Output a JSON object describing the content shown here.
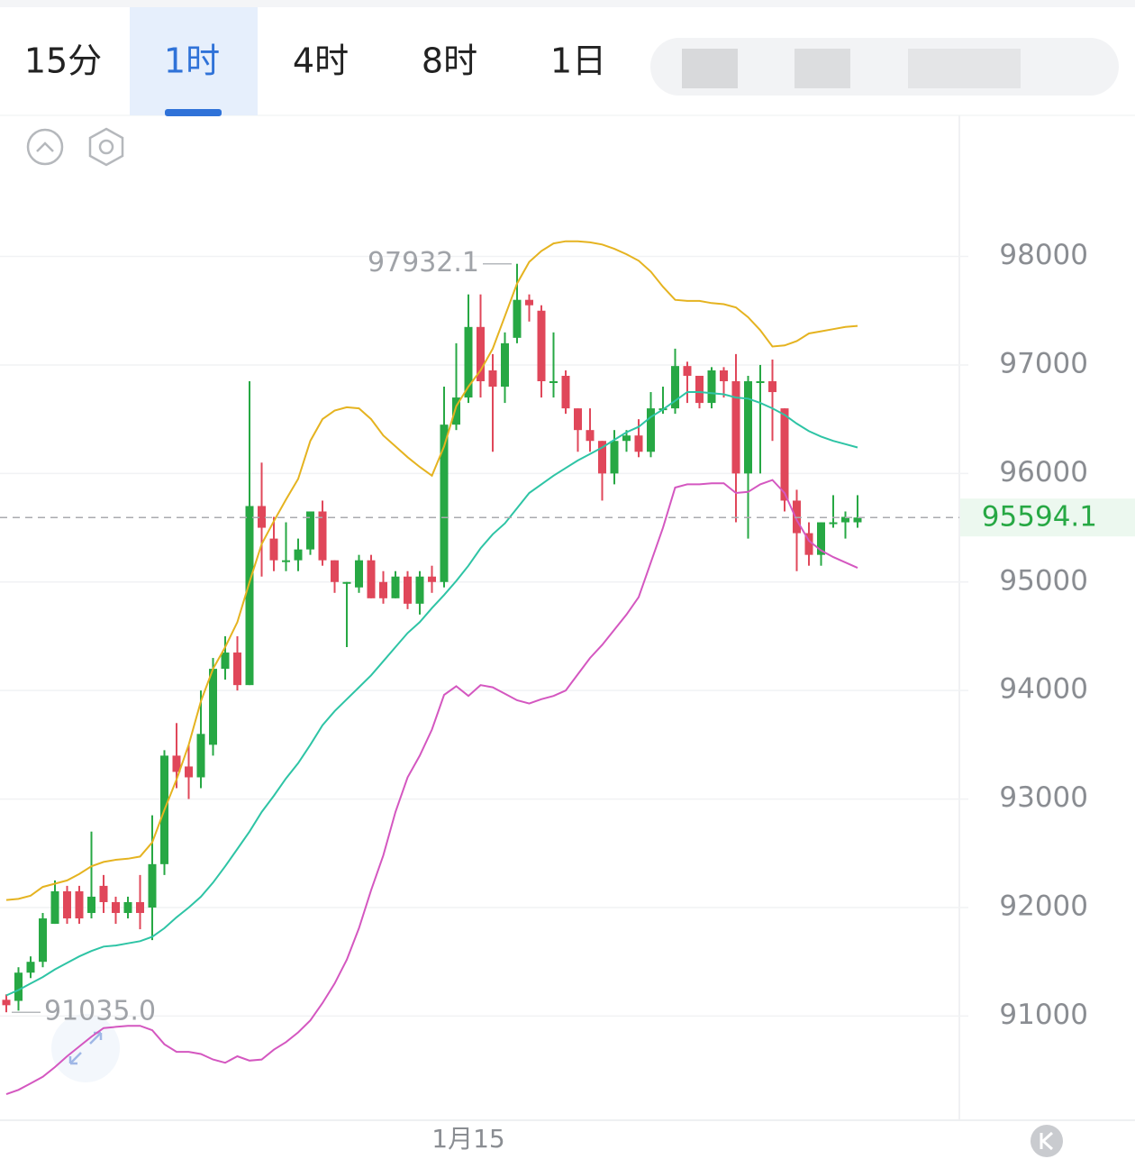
{
  "tabs": [
    "15分",
    "1时",
    "4时",
    "8时",
    "1日"
  ],
  "active_tab": 1,
  "chart_data": {
    "type": "candlestick",
    "categories": [
      null,
      null,
      null,
      null,
      null,
      null,
      null,
      null,
      null,
      null,
      null,
      null,
      null,
      null,
      null,
      null,
      null,
      null,
      null,
      null,
      null,
      null,
      null,
      null,
      null,
      null,
      null,
      null,
      null,
      null,
      null,
      null,
      null,
      null,
      null,
      null,
      null,
      null,
      "1月15",
      null,
      null,
      null,
      null,
      null,
      null,
      null,
      null,
      null,
      null,
      null,
      null,
      null,
      null,
      null,
      null,
      null,
      null,
      null,
      null,
      null,
      null,
      null,
      null,
      null,
      null,
      null,
      null,
      null,
      null,
      null,
      null
    ],
    "open": [
      91150,
      91140,
      91400,
      91500,
      91850,
      92150,
      92150,
      91950,
      92200,
      92050,
      91950,
      92050,
      92000,
      92400,
      93400,
      93300,
      93200,
      93500,
      94200,
      94350,
      94050,
      95700,
      95400,
      95200,
      95200,
      95300,
      95650,
      95200,
      95000,
      94950,
      95200,
      95000,
      94850,
      95050,
      94800,
      95050,
      95000,
      96450,
      96700,
      97350,
      96950,
      96800,
      97250,
      97600,
      97500,
      96850,
      96900,
      96600,
      96400,
      96300,
      96000,
      96300,
      96350,
      96200,
      96600,
      96600,
      96990,
      96900,
      96650,
      96950,
      96850,
      96000,
      96850,
      96850,
      96600,
      95750,
      95450,
      95250,
      95550,
      95550,
      95550
    ],
    "high": [
      91200,
      91450,
      91550,
      91950,
      92250,
      92200,
      92200,
      92700,
      92300,
      92100,
      92100,
      92300,
      92850,
      93450,
      93700,
      93500,
      94000,
      94300,
      94500,
      94500,
      96850,
      96100,
      95600,
      95550,
      95400,
      95650,
      95750,
      95200,
      95000,
      95250,
      95250,
      95100,
      95100,
      95100,
      95100,
      95150,
      96800,
      97200,
      97650,
      97650,
      97100,
      97300,
      97932.1,
      97650,
      97550,
      97300,
      96950,
      96600,
      96600,
      96300,
      96400,
      96400,
      96500,
      96750,
      96800,
      97150,
      97030,
      96900,
      96980,
      96980,
      97100,
      96900,
      97000,
      97050,
      96600,
      95850,
      95550,
      95550,
      95800,
      95650,
      95800
    ],
    "low": [
      91035,
      91050,
      91350,
      91450,
      91850,
      91850,
      91850,
      91900,
      91950,
      91850,
      91900,
      91800,
      91700,
      92300,
      93100,
      93000,
      93100,
      93400,
      94100,
      94000,
      94050,
      95050,
      95100,
      95100,
      95100,
      95250,
      95150,
      94900,
      94400,
      94900,
      94850,
      94800,
      94850,
      94750,
      94700,
      94900,
      94950,
      96400,
      96650,
      96700,
      96200,
      96650,
      97200,
      97400,
      96700,
      96700,
      96550,
      96200,
      96200,
      95750,
      95900,
      96200,
      96150,
      96150,
      96550,
      96550,
      96650,
      96600,
      96600,
      96700,
      95550,
      95400,
      96000,
      96300,
      95650,
      95100,
      95150,
      95150,
      95500,
      95400,
      95500
    ],
    "close": [
      91100,
      91400,
      91500,
      91900,
      92150,
      91900,
      91900,
      92100,
      92050,
      91950,
      92050,
      91950,
      92400,
      93400,
      93250,
      93200,
      93600,
      94200,
      94350,
      94050,
      95700,
      95500,
      95200,
      95200,
      95300,
      95650,
      95200,
      95000,
      95000,
      95200,
      94850,
      94850,
      95050,
      94800,
      95050,
      95000,
      96450,
      96700,
      97350,
      96850,
      96800,
      97200,
      97600,
      97550,
      96850,
      96850,
      96600,
      96400,
      96300,
      96000,
      96300,
      96350,
      96200,
      96600,
      96600,
      96990,
      96900,
      96650,
      96950,
      96850,
      96000,
      96850,
      96850,
      96750,
      95750,
      95450,
      95250,
      95550,
      95550,
      95600,
      95594.1
    ],
    "up_color": "#27a844",
    "down_color": "#e0475a",
    "overlays": [
      {
        "color": "#e5b320",
        "values": [
          92070,
          92080,
          92110,
          92190,
          92220,
          92250,
          92310,
          92380,
          92420,
          92440,
          92450,
          92470,
          92600,
          92900,
          93180,
          93500,
          93900,
          94200,
          94400,
          94630,
          95000,
          95350,
          95560,
          95760,
          95950,
          96300,
          96500,
          96580,
          96610,
          96600,
          96500,
          96350,
          96250,
          96150,
          96060,
          95980,
          96250,
          96620,
          96800,
          96950,
          97150,
          97450,
          97750,
          97950,
          98050,
          98120,
          98140,
          98140,
          98130,
          98110,
          98070,
          98020,
          97960,
          97860,
          97720,
          97600,
          97590,
          97590,
          97570,
          97560,
          97530,
          97440,
          97320,
          97170,
          97180,
          97220,
          97290,
          97310,
          97330,
          97350,
          97360
        ]
      },
      {
        "color": "#2ec4a5",
        "values": [
          91190,
          91240,
          91300,
          91360,
          91430,
          91490,
          91550,
          91600,
          91640,
          91650,
          91670,
          91690,
          91730,
          91810,
          91910,
          92000,
          92100,
          92230,
          92380,
          92540,
          92700,
          92880,
          93030,
          93190,
          93330,
          93500,
          93680,
          93810,
          93920,
          94030,
          94140,
          94270,
          94400,
          94530,
          94630,
          94760,
          94880,
          95010,
          95150,
          95310,
          95440,
          95540,
          95680,
          95820,
          95900,
          95980,
          96050,
          96120,
          96180,
          96240,
          96310,
          96380,
          96430,
          96520,
          96590,
          96670,
          96750,
          96750,
          96740,
          96730,
          96700,
          96690,
          96650,
          96600,
          96540,
          96460,
          96390,
          96340,
          96300,
          96270,
          96240
        ]
      },
      {
        "color": "#d457c0",
        "values": [
          90280,
          90320,
          90380,
          90440,
          90530,
          90630,
          90720,
          90810,
          90890,
          90900,
          90910,
          90910,
          90870,
          90740,
          90670,
          90670,
          90650,
          90600,
          90570,
          90630,
          90590,
          90600,
          90690,
          90760,
          90850,
          90960,
          91120,
          91300,
          91520,
          91810,
          92160,
          92480,
          92880,
          93200,
          93400,
          93640,
          93960,
          94040,
          93950,
          94050,
          94030,
          93970,
          93910,
          93880,
          93920,
          93950,
          94000,
          94150,
          94300,
          94420,
          94560,
          94700,
          94860,
          95180,
          95500,
          95870,
          95900,
          95900,
          95910,
          95910,
          95820,
          95830,
          95900,
          95940,
          95820,
          95570,
          95380,
          95290,
          95230,
          95180,
          95130
        ]
      }
    ],
    "high_label": "97932.1",
    "low_label": "91035.0",
    "ylim": [
      90040,
      99300
    ],
    "yticks": [
      91000,
      92000,
      93000,
      94000,
      95000,
      96000,
      97000,
      98000
    ],
    "grid": true
  }
}
